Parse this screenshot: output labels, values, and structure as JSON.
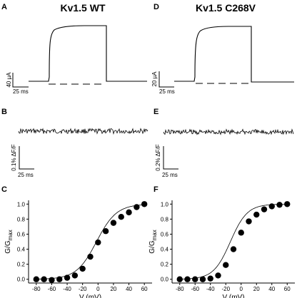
{
  "figure": {
    "panel_letters": {
      "A": "A",
      "B": "B",
      "C": "C",
      "D": "D",
      "E": "E",
      "F": "F"
    },
    "titles": {
      "left": "Kv1.5 WT",
      "right": "Kv1.5 C268V"
    },
    "scale_bars": {
      "A_amp": "40 µA",
      "A_time": "25 ms",
      "D_amp": "20 µA",
      "D_time": "25 ms",
      "B_fluor": "0.1% ΔF/F",
      "B_time": "25 ms",
      "E_fluor": "0.2% ΔF/F",
      "E_time": "25 ms"
    }
  },
  "chart_data": [
    {
      "panel": "C",
      "type": "scatter",
      "xlabel": "V (mV)",
      "ylabel_main": "G/G",
      "ylabel_sub": "max",
      "xlim": [
        -90,
        70
      ],
      "ylim": [
        -0.05,
        1.05
      ],
      "xticks": [
        -80,
        -60,
        -40,
        -20,
        0,
        20,
        40,
        60
      ],
      "yticks": [
        0.0,
        0.2,
        0.4,
        0.6,
        0.8,
        1.0
      ],
      "ytick_labels": [
        "0.0",
        "0.2",
        "0.4",
        "0.6",
        "0.8",
        "1.0"
      ],
      "x": [
        -80,
        -70,
        -60,
        -50,
        -40,
        -30,
        -20,
        -10,
        0,
        10,
        20,
        30,
        40,
        50,
        60
      ],
      "y": [
        0.0,
        0.0,
        -0.01,
        0.0,
        0.02,
        0.05,
        0.14,
        0.3,
        0.49,
        0.64,
        0.75,
        0.83,
        0.89,
        0.96,
        1.0
      ],
      "fit": {
        "type": "boltzmann",
        "v_half": -2,
        "slope": 13
      }
    },
    {
      "panel": "F",
      "type": "scatter",
      "xlabel": "V (mV)",
      "ylabel_main": "G/G",
      "ylabel_sub": "max",
      "xlim": [
        -90,
        70
      ],
      "ylim": [
        -0.05,
        1.05
      ],
      "xticks": [
        -80,
        -60,
        -40,
        -20,
        0,
        20,
        40,
        60
      ],
      "yticks": [
        0.0,
        0.2,
        0.4,
        0.6,
        0.8,
        1.0
      ],
      "ytick_labels": [
        "0.0",
        "0.2",
        "0.4",
        "0.6",
        "0.8",
        "1.0"
      ],
      "x": [
        -80,
        -70,
        -60,
        -50,
        -40,
        -30,
        -20,
        -10,
        0,
        10,
        20,
        30,
        40,
        50,
        60
      ],
      "y": [
        0.0,
        0.0,
        0.0,
        0.0,
        0.01,
        0.05,
        0.19,
        0.4,
        0.62,
        0.77,
        0.86,
        0.93,
        0.97,
        0.99,
        1.0
      ],
      "fit": {
        "type": "boltzmann",
        "v_half": -14,
        "slope": 11
      }
    }
  ]
}
